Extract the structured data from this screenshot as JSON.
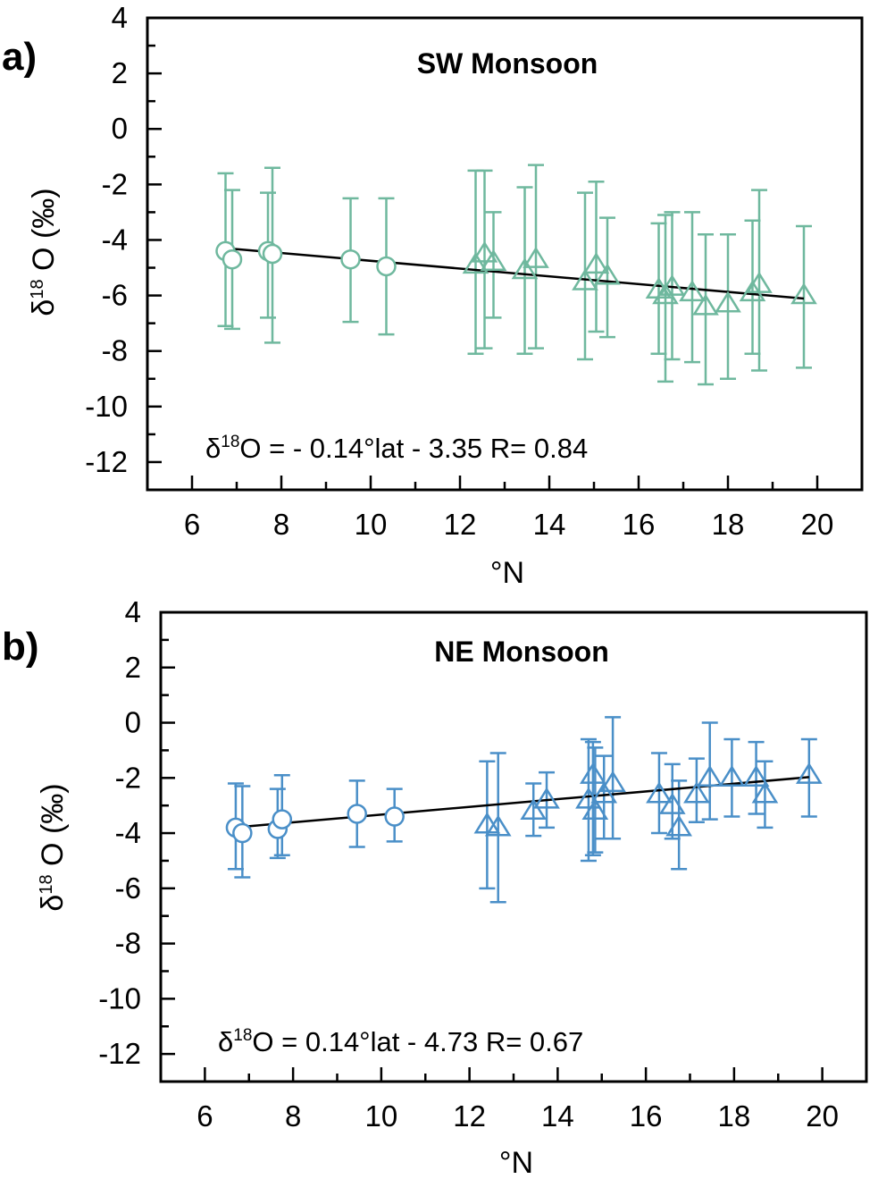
{
  "chart_data": [
    {
      "type": "scatter",
      "panel_label": "a)",
      "title": "SW Monsoon",
      "xlabel": "°N",
      "ylabel_main": "δ",
      "ylabel_sup": "18",
      "ylabel_rest": " O (‰)",
      "xlim": [
        5,
        21
      ],
      "ylim": [
        -13,
        4
      ],
      "xticks": [
        "6",
        "8",
        "10",
        "12",
        "14",
        "16",
        "18",
        "20"
      ],
      "xtick_values": [
        6,
        8,
        10,
        12,
        14,
        16,
        18,
        20
      ],
      "yticks": [
        "4",
        "2",
        "0",
        "-2",
        "-4",
        "-6",
        "-8",
        "-10",
        "-12"
      ],
      "ytick_values": [
        4,
        2,
        0,
        -2,
        -4,
        -6,
        -8,
        -10,
        -12
      ],
      "color": "#6fb89e",
      "equation_pre": "δ",
      "equation_sup": "18",
      "equation_post": "O = - 0.14°lat - 3.35  R= 0.84",
      "fit": {
        "slope": -0.14,
        "intercept": -3.35,
        "x_range": [
          6.8,
          19.7
        ]
      },
      "series": [
        {
          "name": "circles",
          "marker": "circle",
          "points": [
            {
              "x": 6.75,
              "y": -4.4,
              "lo": -7.1,
              "hi": -1.6
            },
            {
              "x": 6.9,
              "y": -4.7,
              "lo": -7.2,
              "hi": -2.2
            },
            {
              "x": 7.7,
              "y": -4.4,
              "lo": -6.8,
              "hi": -2.3
            },
            {
              "x": 7.8,
              "y": -4.5,
              "lo": -7.7,
              "hi": -1.4
            },
            {
              "x": 9.55,
              "y": -4.7,
              "lo": -6.95,
              "hi": -2.5
            },
            {
              "x": 10.35,
              "y": -4.95,
              "lo": -7.4,
              "hi": -2.5
            }
          ]
        },
        {
          "name": "triangles",
          "marker": "triangle",
          "points": [
            {
              "x": 12.35,
              "y": -4.9,
              "lo": -8.1,
              "hi": -1.5
            },
            {
              "x": 12.55,
              "y": -4.5,
              "lo": -7.9,
              "hi": -1.5
            },
            {
              "x": 12.75,
              "y": -4.8,
              "lo": -6.8,
              "hi": -3.0
            },
            {
              "x": 13.45,
              "y": -5.1,
              "lo": -8.1,
              "hi": -2.1
            },
            {
              "x": 13.7,
              "y": -4.7,
              "lo": -7.9,
              "hi": -1.3
            },
            {
              "x": 14.8,
              "y": -5.5,
              "lo": -8.3,
              "hi": -2.3
            },
            {
              "x": 15.05,
              "y": -4.9,
              "lo": -7.3,
              "hi": -1.9
            },
            {
              "x": 15.3,
              "y": -5.3,
              "lo": -7.5,
              "hi": -3.2
            },
            {
              "x": 16.45,
              "y": -5.8,
              "lo": -8.1,
              "hi": -3.4
            },
            {
              "x": 16.6,
              "y": -6.0,
              "lo": -9.1,
              "hi": -3.1
            },
            {
              "x": 16.75,
              "y": -5.7,
              "lo": -8.3,
              "hi": -3.0
            },
            {
              "x": 17.2,
              "y": -5.9,
              "lo": -8.4,
              "hi": -3.0
            },
            {
              "x": 17.5,
              "y": -6.4,
              "lo": -9.2,
              "hi": -3.8
            },
            {
              "x": 18.0,
              "y": -6.3,
              "lo": -9.0,
              "hi": -3.8
            },
            {
              "x": 18.55,
              "y": -5.9,
              "lo": -8.1,
              "hi": -3.3
            },
            {
              "x": 18.7,
              "y": -5.6,
              "lo": -8.7,
              "hi": -2.2
            },
            {
              "x": 19.7,
              "y": -6.0,
              "lo": -8.6,
              "hi": -3.5
            }
          ]
        }
      ]
    },
    {
      "type": "scatter",
      "panel_label": "b)",
      "title": "NE Monsoon",
      "xlabel": "°N",
      "ylabel_main": "δ",
      "ylabel_sup": "18",
      "ylabel_rest": " O (‰)",
      "xlim": [
        5,
        21
      ],
      "ylim": [
        -13,
        4
      ],
      "xticks": [
        "6",
        "8",
        "10",
        "12",
        "14",
        "16",
        "18",
        "20"
      ],
      "xtick_values": [
        6,
        8,
        10,
        12,
        14,
        16,
        18,
        20
      ],
      "yticks": [
        "4",
        "2",
        "0",
        "-2",
        "-4",
        "-6",
        "-8",
        "-10",
        "-12"
      ],
      "ytick_values": [
        4,
        2,
        0,
        -2,
        -4,
        -6,
        -8,
        -10,
        -12
      ],
      "color": "#4a8fc8",
      "equation_pre": "δ",
      "equation_sup": "18",
      "equation_post": "O = 0.14°lat - 4.73     R= 0.67",
      "fit": {
        "slope": 0.14,
        "intercept": -4.73,
        "x_range": [
          6.9,
          19.7
        ]
      },
      "series": [
        {
          "name": "circles",
          "marker": "circle",
          "points": [
            {
              "x": 6.7,
              "y": -3.8,
              "lo": -5.3,
              "hi": -2.2
            },
            {
              "x": 6.85,
              "y": -4.0,
              "lo": -5.6,
              "hi": -2.3
            },
            {
              "x": 7.65,
              "y": -3.85,
              "lo": -4.9,
              "hi": -2.4
            },
            {
              "x": 7.75,
              "y": -3.5,
              "lo": -4.8,
              "hi": -1.9
            },
            {
              "x": 9.45,
              "y": -3.3,
              "lo": -4.5,
              "hi": -2.1
            },
            {
              "x": 10.3,
              "y": -3.4,
              "lo": -4.3,
              "hi": -2.4
            }
          ]
        },
        {
          "name": "triangles",
          "marker": "triangle",
          "points": [
            {
              "x": 12.4,
              "y": -3.7,
              "lo": -6.0,
              "hi": -1.4
            },
            {
              "x": 12.65,
              "y": -3.8,
              "lo": -6.5,
              "hi": -1.1
            },
            {
              "x": 13.45,
              "y": -3.2,
              "lo": -4.1,
              "hi": -2.2
            },
            {
              "x": 13.75,
              "y": -2.8,
              "lo": -3.8,
              "hi": -1.8
            },
            {
              "x": 14.7,
              "y": -2.8,
              "lo": -5.0,
              "hi": -0.6
            },
            {
              "x": 14.8,
              "y": -1.9,
              "lo": -4.8,
              "hi": -0.7
            },
            {
              "x": 14.85,
              "y": -3.2,
              "lo": -4.7,
              "hi": -0.9
            },
            {
              "x": 15.05,
              "y": -2.6,
              "lo": -4.2,
              "hi": -1.2
            },
            {
              "x": 15.25,
              "y": -2.2,
              "lo": -4.2,
              "hi": 0.2
            },
            {
              "x": 16.3,
              "y": -2.6,
              "lo": -4.0,
              "hi": -1.1
            },
            {
              "x": 16.6,
              "y": -3.0,
              "lo": -4.2,
              "hi": -1.5
            },
            {
              "x": 16.75,
              "y": -3.8,
              "lo": -5.3,
              "hi": -2.1
            },
            {
              "x": 17.15,
              "y": -2.6,
              "lo": -3.6,
              "hi": -1.3
            },
            {
              "x": 17.45,
              "y": -2.0,
              "lo": -3.5,
              "hi": 0.0
            },
            {
              "x": 17.95,
              "y": -2.0,
              "lo": -3.4,
              "hi": -0.6
            },
            {
              "x": 18.5,
              "y": -2.0,
              "lo": -3.3,
              "hi": -0.7
            },
            {
              "x": 18.7,
              "y": -2.6,
              "lo": -3.8,
              "hi": -1.4
            },
            {
              "x": 19.7,
              "y": -1.9,
              "lo": -3.4,
              "hi": -0.6
            }
          ]
        }
      ]
    }
  ]
}
